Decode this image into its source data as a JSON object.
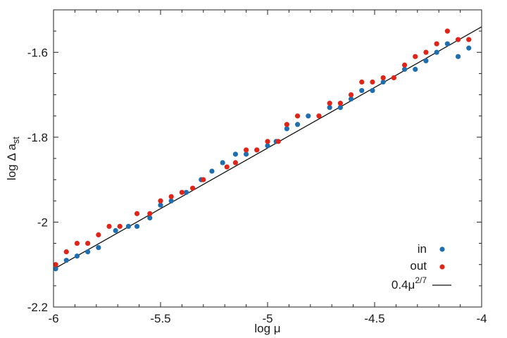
{
  "chart_data": {
    "type": "scatter",
    "xlabel": "log μ",
    "ylabel_main": "log Δ a",
    "ylabel_sub": "st",
    "xlim": [
      -6,
      -4
    ],
    "ylim": [
      -2.2,
      -1.5
    ],
    "xticks": [
      -6,
      -5.5,
      -5,
      -4.5,
      -4
    ],
    "xtick_labels": [
      "-6",
      "-5.5",
      "-5",
      "-4.5",
      "-4"
    ],
    "yticks": [
      -2.2,
      -2,
      -1.8,
      -1.6
    ],
    "ytick_labels": [
      "-2.2",
      "-2",
      "-1.8",
      "-1.6"
    ],
    "grid": false,
    "legend_position": "bottom-right",
    "series": [
      {
        "name": "in",
        "color": "#1f6fb0",
        "points": [
          [
            -5.99,
            -2.11
          ],
          [
            -5.94,
            -2.09
          ],
          [
            -5.89,
            -2.08
          ],
          [
            -5.84,
            -2.07
          ],
          [
            -5.79,
            -2.06
          ],
          [
            -5.71,
            -2.02
          ],
          [
            -5.65,
            -2.01
          ],
          [
            -5.61,
            -2.01
          ],
          [
            -5.55,
            -1.99
          ],
          [
            -5.5,
            -1.96
          ],
          [
            -5.45,
            -1.95
          ],
          [
            -5.38,
            -1.93
          ],
          [
            -5.31,
            -1.9
          ],
          [
            -5.26,
            -1.88
          ],
          [
            -5.21,
            -1.86
          ],
          [
            -5.15,
            -1.84
          ],
          [
            -5.1,
            -1.84
          ],
          [
            -5.05,
            -1.83
          ],
          [
            -5.0,
            -1.82
          ],
          [
            -4.96,
            -1.81
          ],
          [
            -4.91,
            -1.78
          ],
          [
            -4.86,
            -1.77
          ],
          [
            -4.81,
            -1.75
          ],
          [
            -4.71,
            -1.73
          ],
          [
            -4.66,
            -1.73
          ],
          [
            -4.61,
            -1.71
          ],
          [
            -4.56,
            -1.69
          ],
          [
            -4.51,
            -1.69
          ],
          [
            -4.46,
            -1.67
          ],
          [
            -4.36,
            -1.64
          ],
          [
            -4.31,
            -1.64
          ],
          [
            -4.26,
            -1.62
          ],
          [
            -4.21,
            -1.6
          ],
          [
            -4.16,
            -1.58
          ],
          [
            -4.11,
            -1.61
          ],
          [
            -4.06,
            -1.59
          ]
        ]
      },
      {
        "name": "out",
        "color": "#e02418",
        "points": [
          [
            -5.99,
            -2.1
          ],
          [
            -5.94,
            -2.07
          ],
          [
            -5.89,
            -2.05
          ],
          [
            -5.84,
            -2.05
          ],
          [
            -5.79,
            -2.03
          ],
          [
            -5.74,
            -2.01
          ],
          [
            -5.69,
            -2.01
          ],
          [
            -5.61,
            -1.98
          ],
          [
            -5.55,
            -1.98
          ],
          [
            -5.5,
            -1.95
          ],
          [
            -5.45,
            -1.94
          ],
          [
            -5.4,
            -1.93
          ],
          [
            -5.35,
            -1.92
          ],
          [
            -5.3,
            -1.9
          ],
          [
            -5.19,
            -1.87
          ],
          [
            -5.15,
            -1.86
          ],
          [
            -5.1,
            -1.83
          ],
          [
            -5.05,
            -1.83
          ],
          [
            -5.0,
            -1.81
          ],
          [
            -4.95,
            -1.81
          ],
          [
            -4.91,
            -1.77
          ],
          [
            -4.86,
            -1.75
          ],
          [
            -4.76,
            -1.75
          ],
          [
            -4.71,
            -1.72
          ],
          [
            -4.66,
            -1.72
          ],
          [
            -4.61,
            -1.7
          ],
          [
            -4.56,
            -1.67
          ],
          [
            -4.51,
            -1.67
          ],
          [
            -4.46,
            -1.66
          ],
          [
            -4.41,
            -1.66
          ],
          [
            -4.36,
            -1.63
          ],
          [
            -4.31,
            -1.61
          ],
          [
            -4.26,
            -1.6
          ],
          [
            -4.21,
            -1.58
          ],
          [
            -4.16,
            -1.55
          ],
          [
            -4.11,
            -1.57
          ],
          [
            -4.06,
            -1.57
          ]
        ]
      }
    ],
    "fit_line": {
      "name": "0.4μ",
      "exponent": "2/7",
      "color": "#111111",
      "points": [
        [
          -6,
          -2.111
        ],
        [
          -4,
          -1.54
        ]
      ]
    }
  }
}
